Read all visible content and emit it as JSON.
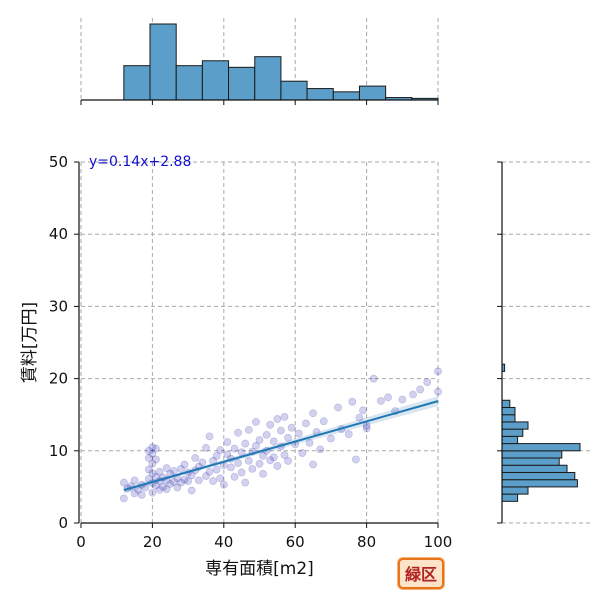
{
  "chart_data": {
    "type": "scatter",
    "xlabel": "専有面積[m2]",
    "ylabel": "賃料[万円]",
    "xlim": [
      0,
      100
    ],
    "ylim": [
      0,
      50
    ],
    "xticks": [
      0,
      20,
      40,
      60,
      80,
      100
    ],
    "yticks": [
      0,
      10,
      20,
      30,
      40,
      50
    ],
    "grid": true,
    "regression": {
      "slope": 0.14,
      "intercept": 2.88,
      "x_range": [
        12,
        100
      ],
      "label": "y=0.14x+2.88"
    },
    "points": [
      [
        12,
        3.4
      ],
      [
        12,
        5.6
      ],
      [
        13,
        4.8
      ],
      [
        14,
        5.1
      ],
      [
        15,
        4.1
      ],
      [
        15,
        5.9
      ],
      [
        16,
        4.6
      ],
      [
        17,
        5.3
      ],
      [
        17,
        3.9
      ],
      [
        18,
        4.9
      ],
      [
        19,
        6.1
      ],
      [
        19,
        7.4
      ],
      [
        19,
        9.0
      ],
      [
        19,
        10.0
      ],
      [
        20,
        4.2
      ],
      [
        20,
        5.5
      ],
      [
        20,
        6.9
      ],
      [
        20,
        8.2
      ],
      [
        20,
        9.6
      ],
      [
        20,
        10.5
      ],
      [
        21,
        5.2
      ],
      [
        21,
        6.4
      ],
      [
        21,
        8.8
      ],
      [
        21,
        10.3
      ],
      [
        22,
        4.6
      ],
      [
        22,
        5.8
      ],
      [
        22,
        7.1
      ],
      [
        23,
        5.0
      ],
      [
        23,
        6.3
      ],
      [
        24,
        4.7
      ],
      [
        24,
        5.9
      ],
      [
        24,
        7.6
      ],
      [
        25,
        5.4
      ],
      [
        25,
        6.8
      ],
      [
        26,
        5.7
      ],
      [
        26,
        7.2
      ],
      [
        27,
        4.9
      ],
      [
        27,
        6.2
      ],
      [
        28,
        5.6
      ],
      [
        28,
        7.5
      ],
      [
        29,
        6.0
      ],
      [
        29,
        8.1
      ],
      [
        30,
        5.8
      ],
      [
        30,
        7.0
      ],
      [
        31,
        6.6
      ],
      [
        31,
        4.5
      ],
      [
        32,
        7.3
      ],
      [
        32,
        9.0
      ],
      [
        33,
        5.9
      ],
      [
        33,
        7.8
      ],
      [
        34,
        8.4
      ],
      [
        35,
        6.5
      ],
      [
        35,
        10.4
      ],
      [
        36,
        7.1
      ],
      [
        36,
        12.0
      ],
      [
        37,
        5.8
      ],
      [
        37,
        8.6
      ],
      [
        38,
        9.3
      ],
      [
        38,
        7.4
      ],
      [
        39,
        6.2
      ],
      [
        39,
        10.1
      ],
      [
        40,
        8.0
      ],
      [
        40,
        5.3
      ],
      [
        41,
        9.5
      ],
      [
        41,
        11.2
      ],
      [
        42,
        7.7
      ],
      [
        42,
        8.9
      ],
      [
        43,
        6.4
      ],
      [
        43,
        10.3
      ],
      [
        44,
        12.5
      ],
      [
        44,
        8.3
      ],
      [
        45,
        9.8
      ],
      [
        45,
        7.0
      ],
      [
        46,
        11.0
      ],
      [
        46,
        5.6
      ],
      [
        47,
        8.6
      ],
      [
        47,
        12.9
      ],
      [
        48,
        9.9
      ],
      [
        48,
        7.5
      ],
      [
        49,
        10.7
      ],
      [
        49,
        14.0
      ],
      [
        50,
        8.2
      ],
      [
        50,
        11.5
      ],
      [
        51,
        9.3
      ],
      [
        51,
        6.8
      ],
      [
        52,
        12.2
      ],
      [
        52,
        10.0
      ],
      [
        53,
        8.7
      ],
      [
        53,
        13.6
      ],
      [
        54,
        11.3
      ],
      [
        54,
        9.1
      ],
      [
        55,
        14.4
      ],
      [
        55,
        7.9
      ],
      [
        56,
        10.6
      ],
      [
        56,
        12.8
      ],
      [
        57,
        9.4
      ],
      [
        57,
        14.7
      ],
      [
        58,
        11.8
      ],
      [
        58,
        8.6
      ],
      [
        59,
        13.2
      ],
      [
        60,
        10.9
      ],
      [
        61,
        12.4
      ],
      [
        62,
        9.7
      ],
      [
        63,
        13.8
      ],
      [
        64,
        11.1
      ],
      [
        65,
        15.2
      ],
      [
        65,
        8.1
      ],
      [
        66,
        12.6
      ],
      [
        67,
        10.2
      ],
      [
        68,
        14.1
      ],
      [
        70,
        11.7
      ],
      [
        72,
        16.0
      ],
      [
        73,
        13.0
      ],
      [
        75,
        12.3
      ],
      [
        76,
        16.8
      ],
      [
        77,
        8.8
      ],
      [
        78,
        14.6
      ],
      [
        79,
        15.6
      ],
      [
        80,
        13.1
      ],
      [
        80,
        13.5
      ],
      [
        82,
        20.0
      ],
      [
        84,
        16.9
      ],
      [
        86,
        17.4
      ],
      [
        88,
        15.5
      ],
      [
        90,
        17.1
      ],
      [
        93,
        17.8
      ],
      [
        95,
        18.5
      ],
      [
        97,
        19.5
      ],
      [
        100,
        18.2
      ],
      [
        100,
        21.0
      ]
    ],
    "histogram_x": {
      "edges": [
        12,
        19.33,
        26.67,
        34,
        41.33,
        48.67,
        56,
        63.33,
        70.67,
        78,
        85.33,
        92.67,
        100
      ],
      "counts": [
        42,
        93,
        42,
        48,
        40,
        53,
        23,
        14,
        10,
        17,
        3,
        2
      ]
    },
    "histogram_y": {
      "edges": [
        3,
        4,
        5,
        6,
        7,
        8,
        9,
        10,
        11,
        12,
        13,
        14,
        15,
        16,
        17,
        18,
        19,
        20,
        21,
        22,
        23
      ],
      "counts": [
        6,
        10,
        29,
        28,
        25,
        22,
        23,
        30,
        6,
        8,
        10,
        5,
        5,
        3,
        0,
        0,
        0,
        0,
        1,
        0
      ]
    }
  },
  "badge": {
    "text": "緑区"
  },
  "colors": {
    "points": "#2020a8",
    "line": "#1f77b4",
    "bars": "#5a9ec9",
    "equation": "#1010d0",
    "badge_border": "#e8731a"
  }
}
